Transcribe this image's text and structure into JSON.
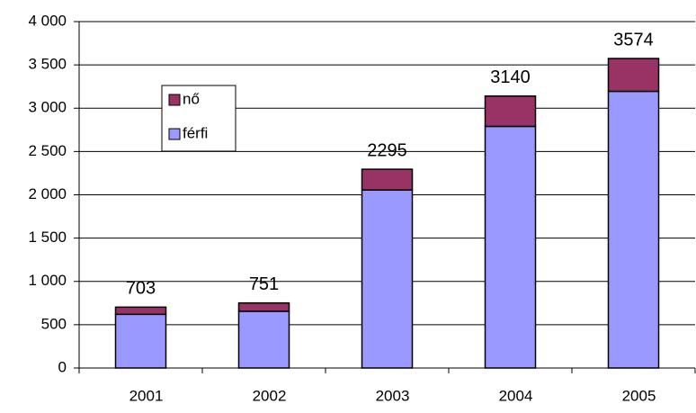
{
  "chart_data": {
    "type": "stacked_bar",
    "categories": [
      "2001",
      "2002",
      "2003",
      "2004",
      "2005"
    ],
    "series": [
      {
        "name": "férfi",
        "color": "#9999ff",
        "values": [
          620,
          655,
          2055,
          2790,
          3195
        ]
      },
      {
        "name": "nő",
        "color": "#993366",
        "values": [
          83,
          96,
          240,
          350,
          379
        ]
      }
    ],
    "totals": [
      703,
      751,
      2295,
      3140,
      3574
    ],
    "ylim": [
      0,
      4000
    ],
    "yticks": [
      0,
      500,
      {
        "value": 1000,
        "label": "1 000"
      },
      {
        "value": 1500,
        "label": "1 500"
      },
      {
        "value": 2000,
        "label": "2 000"
      },
      {
        "value": 2500,
        "label": "2 500"
      },
      {
        "value": 3000,
        "label": "3 000"
      },
      {
        "value": 3500,
        "label": "3 500"
      },
      {
        "value": 4000,
        "label": "4 000"
      }
    ],
    "grid": true
  }
}
